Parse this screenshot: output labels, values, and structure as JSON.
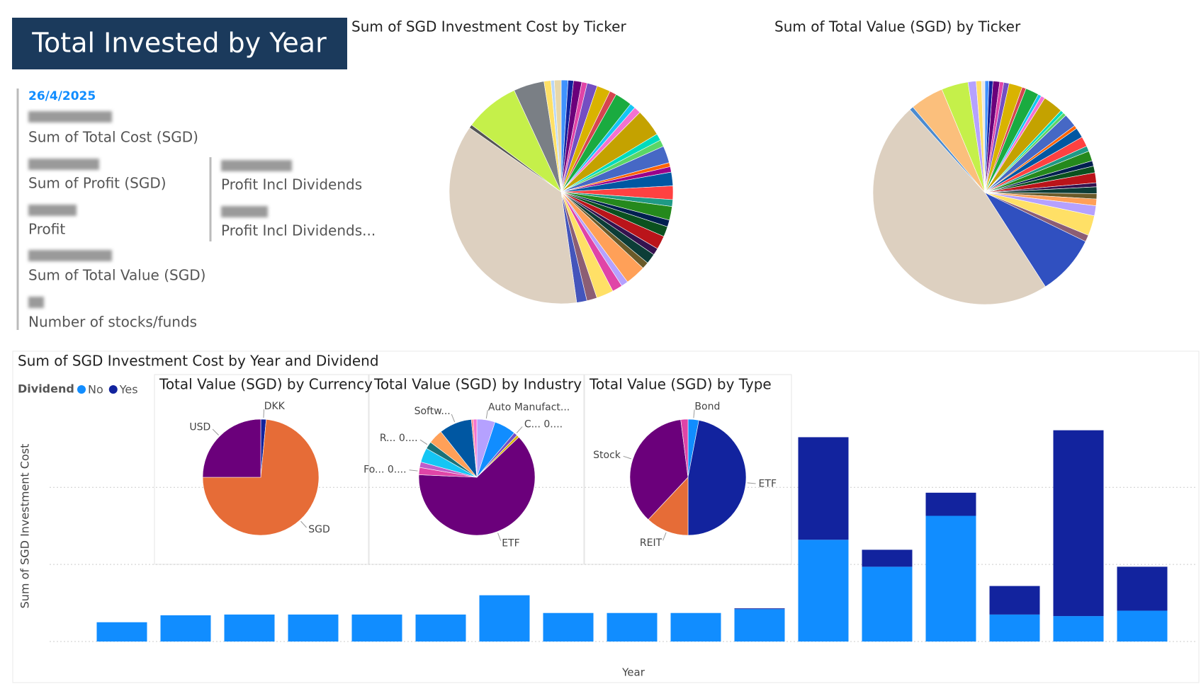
{
  "header": {
    "title": "Total Invested by Year"
  },
  "kpi": {
    "date": "26/4/2025",
    "labels": [
      "Sum of Total Cost (SGD)",
      "Sum of Profit (SGD)",
      "Profit",
      "Sum of Total Value (SGD)",
      "Number of stocks/funds"
    ],
    "labels_right": [
      "Profit Incl Dividends",
      "Profit Incl Dividends..."
    ]
  },
  "chart_data": [
    {
      "type": "pie",
      "title": "Sum of SGD Investment Cost by Ticker",
      "values": [
        1.0,
        0.8,
        1.2,
        0.8,
        1.5,
        2.0,
        1.0,
        2.5,
        0.8,
        1.0,
        4.0,
        1.0,
        1.0,
        2.5,
        0.6,
        0.8,
        2.0,
        2.0,
        1.0,
        2.0,
        1.0,
        1.5,
        2.0,
        1.0,
        1.5,
        1.0,
        3.0,
        1.0,
        1.5,
        2.5,
        1.5,
        1.5,
        37.5,
        0.5,
        8.0,
        4.5,
        1.0,
        0.5,
        1.0
      ],
      "colors": [
        "#4092FF",
        "#12239E",
        "#6B007B",
        "#E044A7",
        "#744EC2",
        "#D9B300",
        "#D64550",
        "#1AAB40",
        "#15C6F4",
        "#F472D0",
        "#C4A200",
        "#00DBBC",
        "#5BD667",
        "#4668C5",
        "#FF6300",
        "#99008A",
        "#0057A2",
        "#FF4141",
        "#1F9A85",
        "#25891C",
        "#002050",
        "#0B511F",
        "#BA141A",
        "#34124F",
        "#0C3D37",
        "#6A5A29",
        "#FFA058",
        "#B5A1FF",
        "#E044A7",
        "#FFE066",
        "#8C5E74",
        "#4455BB",
        "#DDD0C0",
        "#555555",
        "#C5F04A",
        "#7A7F85",
        "#FFE066",
        "#B9D7F7",
        "#E8D8A8"
      ]
    },
    {
      "type": "pie",
      "title": "Sum of Total Value (SGD) by Ticker",
      "values": [
        0.6,
        0.6,
        1.0,
        0.6,
        0.8,
        2.0,
        0.6,
        2.0,
        0.5,
        0.6,
        3.0,
        0.5,
        0.5,
        2.0,
        0.5,
        1.5,
        1.5,
        0.8,
        1.5,
        0.8,
        1.0,
        1.5,
        0.6,
        1.0,
        0.8,
        1.0,
        1.5,
        3.0,
        1.0,
        9.0,
        49.0,
        0.6,
        5.0,
        4.0,
        1.2,
        0.8,
        0.5
      ],
      "colors": [
        "#4092FF",
        "#12239E",
        "#6B007B",
        "#E044A7",
        "#744EC2",
        "#D9B300",
        "#D64550",
        "#1AAB40",
        "#15C6F4",
        "#F472D0",
        "#C4A200",
        "#00DBBC",
        "#5BD667",
        "#4668C5",
        "#FF6300",
        "#0057A2",
        "#FF4141",
        "#1F9A85",
        "#25891C",
        "#002050",
        "#0B511F",
        "#BA141A",
        "#34124F",
        "#0C3D37",
        "#6A5A29",
        "#FFA058",
        "#B5A1FF",
        "#FFE066",
        "#8C5E74",
        "#3050C0",
        "#DDD0C0",
        "#4B8BD0",
        "#FBBF7C",
        "#C5F04A",
        "#B5A1FF",
        "#FFE066",
        "#E8E8E8"
      ]
    },
    {
      "type": "stacked_bar",
      "title": "Sum of SGD Investment Cost by Year and Dividend",
      "legend_title": "Dividend",
      "y_label": "Sum of SGD Investment Cost",
      "x_label": "Year",
      "categories": [
        null,
        null,
        null,
        null,
        null,
        null,
        null,
        null,
        null,
        null,
        null,
        null,
        null,
        null,
        null,
        null,
        null
      ],
      "series": [
        {
          "name": "No",
          "color": "#118DFF",
          "values": [
            25000,
            34000,
            35000,
            35000,
            35000,
            35000,
            60000,
            37000,
            37000,
            37000,
            42000,
            132000,
            97000,
            163000,
            35000,
            33000,
            40000
          ]
        },
        {
          "name": "Yes",
          "color": "#12239E",
          "values": [
            0,
            0,
            0,
            0,
            0,
            0,
            0,
            0,
            0,
            0,
            1000,
            133000,
            22000,
            30000,
            37000,
            241000,
            57000
          ]
        }
      ],
      "ylim": [
        0,
        270000
      ],
      "yticks": [
        0,
        100000,
        200000
      ],
      "grid": true
    },
    {
      "type": "pie",
      "title": "Total Value (SGD) by Currency",
      "categories": [
        "DKK",
        "SGD",
        "USD"
      ],
      "values": [
        1.5,
        73.5,
        25
      ],
      "colors": [
        "#12239E",
        "#E66C37",
        "#6B007B"
      ]
    },
    {
      "type": "pie",
      "title": "Total Value (SGD) by Industry",
      "categories": [
        "Auto Manufact...",
        null,
        "C... 0....",
        null,
        "ETF",
        "Fo... 0....",
        null,
        null,
        "R... 0....",
        null,
        "Softw...",
        null,
        null
      ],
      "values": [
        5,
        6,
        1,
        0.7,
        62,
        2,
        1.5,
        4,
        2,
        4,
        9,
        0.5,
        1
      ],
      "colors": [
        "#B5A1FF",
        "#118DFF",
        "#744EC2",
        "#D9B300",
        "#6B007B",
        "#E044A7",
        "#BE5DC9",
        "#15C6F4",
        "#197278",
        "#FFA058",
        "#0057A2",
        "#FF8080",
        "#F472D0"
      ]
    },
    {
      "type": "pie",
      "title": "Total Value (SGD) by Type",
      "categories": [
        "Bond",
        "ETF",
        "REIT",
        "Stock",
        null
      ],
      "values": [
        3,
        47,
        12,
        36,
        2
      ],
      "colors": [
        "#118DFF",
        "#12239E",
        "#E66C37",
        "#6B007B",
        "#E044A7"
      ]
    }
  ]
}
